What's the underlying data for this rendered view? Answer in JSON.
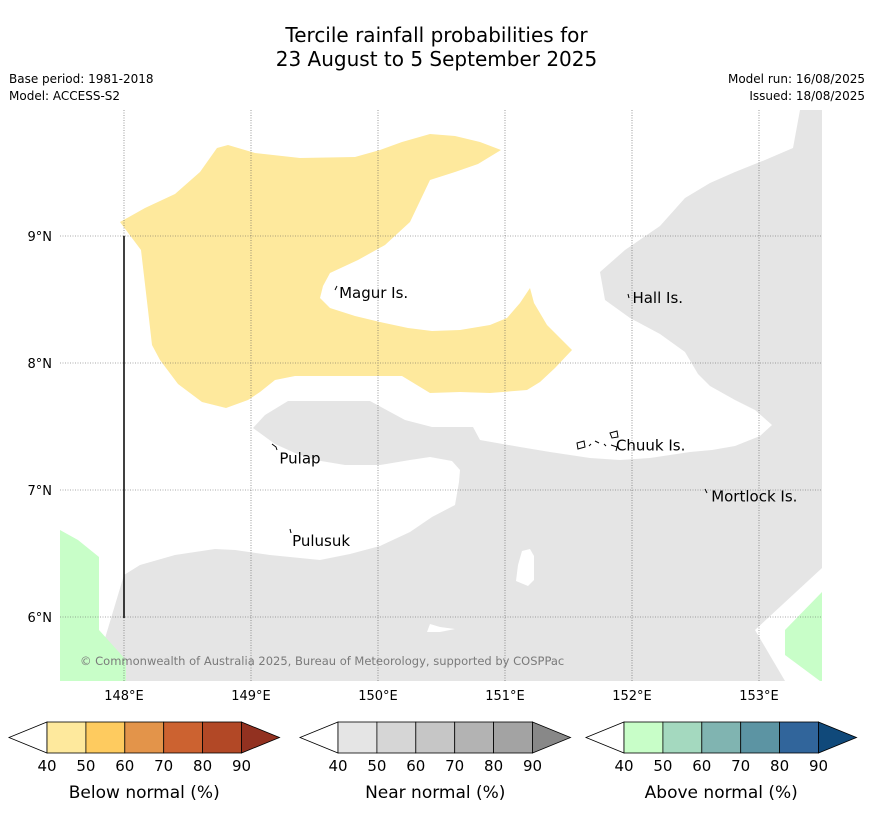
{
  "header": {
    "title_line1": "Tercile rainfall probabilities for",
    "title_line2": "23 August to 5 September 2025",
    "base_period": "Base period: 1981-2018",
    "model": "Model: ACCESS-S2",
    "model_run": "Model run: 16/08/2025",
    "issued": "Issued: 18/08/2025"
  },
  "map": {
    "lon_ticks": [
      "148°E",
      "149°E",
      "150°E",
      "151°E",
      "152°E",
      "153°E"
    ],
    "lat_ticks": [
      "9°N",
      "8°N",
      "7°N",
      "6°N"
    ],
    "places": [
      {
        "name": "Magur Is.",
        "lon": 149.67,
        "lat": 8.55
      },
      {
        "name": "Hall Is.",
        "lon": 151.98,
        "lat": 8.51
      },
      {
        "name": "Pulap",
        "lon": 149.2,
        "lat": 7.25
      },
      {
        "name": "Chuuk Is.",
        "lon": 151.85,
        "lat": 7.35
      },
      {
        "name": "Mortlock Is.",
        "lon": 152.6,
        "lat": 6.95
      },
      {
        "name": "Pulusuk",
        "lon": 149.3,
        "lat": 6.6
      }
    ],
    "copyright": "© Commonwealth of Australia 2025, Bureau of Meteorology, supported by COSPPac"
  },
  "colorbars": [
    {
      "title": "Below normal (%)",
      "labels": [
        "40",
        "50",
        "60",
        "70",
        "80",
        "90"
      ],
      "colors": [
        "#fee99d",
        "#fecb5f",
        "#e3944a",
        "#cc6230",
        "#b24826",
        "#923120"
      ]
    },
    {
      "title": "Near normal (%)",
      "labels": [
        "40",
        "50",
        "60",
        "70",
        "80",
        "90"
      ],
      "colors": [
        "#e5e5e5",
        "#d6d6d6",
        "#c6c6c6",
        "#b3b3b3",
        "#a3a3a3",
        "#888888"
      ]
    },
    {
      "title": "Above normal (%)",
      "labels": [
        "40",
        "50",
        "60",
        "70",
        "80",
        "90"
      ],
      "colors": [
        "#c8fec8",
        "#a4d9bf",
        "#80b4b1",
        "#5c94a3",
        "#31659b",
        "#10497a"
      ]
    }
  ]
}
